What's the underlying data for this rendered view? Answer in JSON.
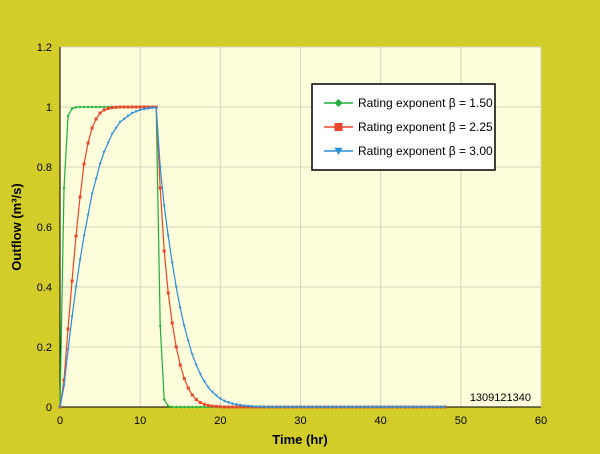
{
  "chart_data": {
    "type": "line",
    "title": "",
    "xlabel": "Time (hr)",
    "ylabel": "Outflow (m³/s)",
    "xlim": [
      0,
      60
    ],
    "ylim": [
      0,
      1.2
    ],
    "xticks": [
      "0",
      "10",
      "20",
      "30",
      "40",
      "50",
      "60"
    ],
    "yticks": [
      "0",
      "0.2",
      "0.4",
      "0.6",
      "0.8",
      "1",
      "1.2"
    ],
    "grid": true,
    "legend_position": "top-right",
    "annotation": "1309121340",
    "colors": {
      "background": "#d3cd2a",
      "plot_area": "#fdfcdb",
      "grid": "#d6d6bd"
    },
    "x_end": 48,
    "x_step": 0.5,
    "series": [
      {
        "name": "Rating exponent β  = 1.50",
        "color": "#1fae3a",
        "marker": "diamond",
        "values": [
          0,
          0.73,
          0.97,
          0.995,
          0.999,
          1,
          1,
          1,
          1,
          1,
          1,
          1,
          1,
          1,
          1,
          1,
          1,
          1,
          1,
          1,
          1,
          1,
          1,
          1,
          1,
          0.27,
          0.025,
          0.003,
          0,
          0,
          0,
          0,
          0,
          0,
          0,
          0,
          0,
          0,
          0,
          0,
          0,
          0,
          0,
          0,
          0,
          0,
          0,
          0,
          0,
          0,
          0,
          0,
          0,
          0,
          0,
          0,
          0,
          0,
          0,
          0,
          0,
          0,
          0,
          0,
          0,
          0,
          0,
          0,
          0,
          0,
          0,
          0,
          0,
          0,
          0,
          0,
          0,
          0,
          0,
          0,
          0,
          0,
          0,
          0,
          0,
          0,
          0,
          0,
          0,
          0,
          0,
          0,
          0,
          0,
          0,
          0,
          0
        ]
      },
      {
        "name": "Rating exponent β  = 2.25",
        "color": "#e8462b",
        "marker": "square",
        "values": [
          0,
          0.09,
          0.26,
          0.42,
          0.57,
          0.7,
          0.81,
          0.88,
          0.93,
          0.96,
          0.98,
          0.99,
          0.995,
          0.998,
          0.999,
          1,
          1,
          1,
          1,
          1,
          1,
          1,
          1,
          1,
          1,
          0.73,
          0.52,
          0.38,
          0.28,
          0.2,
          0.14,
          0.095,
          0.063,
          0.04,
          0.025,
          0.015,
          0.009,
          0.005,
          0.003,
          0.002,
          0.001,
          0,
          0,
          0,
          0,
          0,
          0,
          0,
          0,
          0,
          0,
          0,
          0,
          0,
          0,
          0,
          0,
          0,
          0,
          0,
          0,
          0,
          0,
          0,
          0,
          0,
          0,
          0,
          0,
          0,
          0,
          0,
          0,
          0,
          0,
          0,
          0,
          0,
          0,
          0,
          0,
          0,
          0,
          0,
          0,
          0,
          0,
          0,
          0,
          0,
          0,
          0,
          0,
          0,
          0,
          0,
          0
        ]
      },
      {
        "name": "Rating exponent β  = 3.00",
        "color": "#2b8ed8",
        "marker": "triangle-down",
        "values": [
          0,
          0.07,
          0.19,
          0.3,
          0.4,
          0.49,
          0.57,
          0.64,
          0.71,
          0.76,
          0.81,
          0.85,
          0.88,
          0.91,
          0.93,
          0.95,
          0.96,
          0.97,
          0.98,
          0.985,
          0.99,
          0.993,
          0.995,
          0.997,
          0.998,
          0.8,
          0.67,
          0.57,
          0.48,
          0.4,
          0.33,
          0.27,
          0.22,
          0.175,
          0.14,
          0.11,
          0.085,
          0.065,
          0.05,
          0.038,
          0.028,
          0.02,
          0.015,
          0.011,
          0.008,
          0.006,
          0.004,
          0.003,
          0.002,
          0.001,
          0.001,
          0,
          0,
          0,
          0,
          0,
          0,
          0,
          0,
          0,
          0,
          0,
          0,
          0,
          0,
          0,
          0,
          0,
          0,
          0,
          0,
          0,
          0,
          0,
          0,
          0,
          0,
          0,
          0,
          0,
          0,
          0,
          0,
          0,
          0,
          0,
          0,
          0,
          0,
          0,
          0,
          0,
          0,
          0,
          0,
          0,
          0
        ]
      }
    ]
  }
}
